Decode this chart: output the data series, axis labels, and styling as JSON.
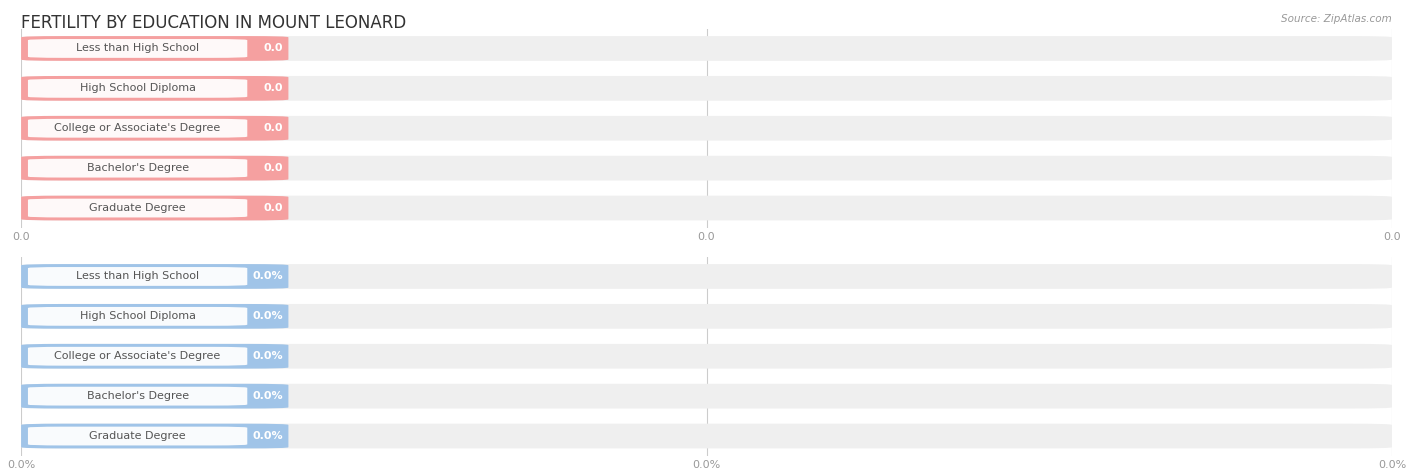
{
  "title": "FERTILITY BY EDUCATION IN MOUNT LEONARD",
  "source": "Source: ZipAtlas.com",
  "categories": [
    "Less than High School",
    "High School Diploma",
    "College or Associate's Degree",
    "Bachelor's Degree",
    "Graduate Degree"
  ],
  "values_top": [
    0.0,
    0.0,
    0.0,
    0.0,
    0.0
  ],
  "values_bottom": [
    0.0,
    0.0,
    0.0,
    0.0,
    0.0
  ],
  "bar_color_top": "#f5a0a0",
  "bar_color_bottom": "#a0c4e8",
  "bar_bg_color": "#efefef",
  "text_color": "#555555",
  "title_color": "#333333",
  "background_color": "#ffffff",
  "grid_color": "#cccccc",
  "tick_label_color": "#999999",
  "title_fontsize": 12,
  "cat_fontsize": 8,
  "val_fontsize": 8,
  "tick_fontsize": 8,
  "source_fontsize": 7.5
}
